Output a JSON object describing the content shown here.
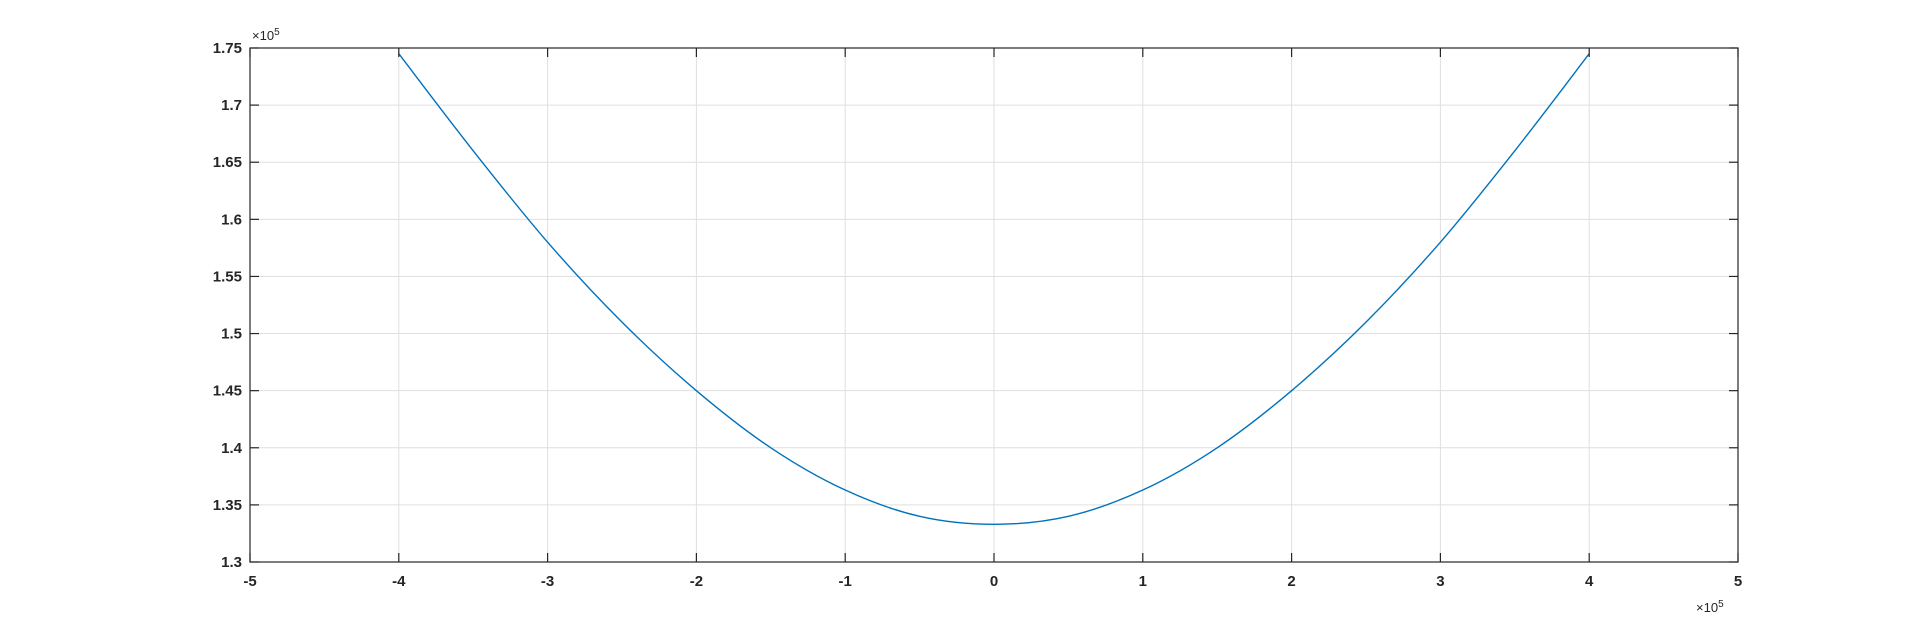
{
  "chart_data": {
    "type": "line",
    "title": "",
    "xlabel": "",
    "ylabel": "",
    "xlim": [
      -500000,
      500000
    ],
    "ylim": [
      130000,
      175000
    ],
    "x_ticks": [
      -500000,
      -400000,
      -300000,
      -200000,
      -100000,
      0,
      100000,
      200000,
      300000,
      400000,
      500000
    ],
    "x_tick_labels": [
      "-5",
      "-4",
      "-3",
      "-2",
      "-1",
      "0",
      "1",
      "2",
      "3",
      "4",
      "5"
    ],
    "y_ticks": [
      130000,
      135000,
      140000,
      145000,
      150000,
      155000,
      160000,
      165000,
      170000,
      175000
    ],
    "y_tick_labels": [
      "1.3",
      "1.35",
      "1.4",
      "1.45",
      "1.5",
      "1.55",
      "1.6",
      "1.65",
      "1.7",
      "1.75"
    ],
    "x_exponent": {
      "base": "×10",
      "power": "5"
    },
    "y_exponent": {
      "base": "×10",
      "power": "5"
    },
    "grid": true,
    "legend": "none",
    "series": [
      {
        "color": "#0072bd",
        "x": [
          -400000,
          -350000,
          -300000,
          -250000,
          -200000,
          -150000,
          -100000,
          -50000,
          0,
          50000,
          100000,
          150000,
          200000,
          250000,
          300000,
          350000,
          400000
        ],
        "y": [
          174500,
          166000,
          158000,
          151000,
          145000,
          140000,
          136300,
          134000,
          133300,
          134000,
          136300,
          140000,
          145000,
          151000,
          158000,
          166000,
          174500
        ]
      }
    ]
  }
}
